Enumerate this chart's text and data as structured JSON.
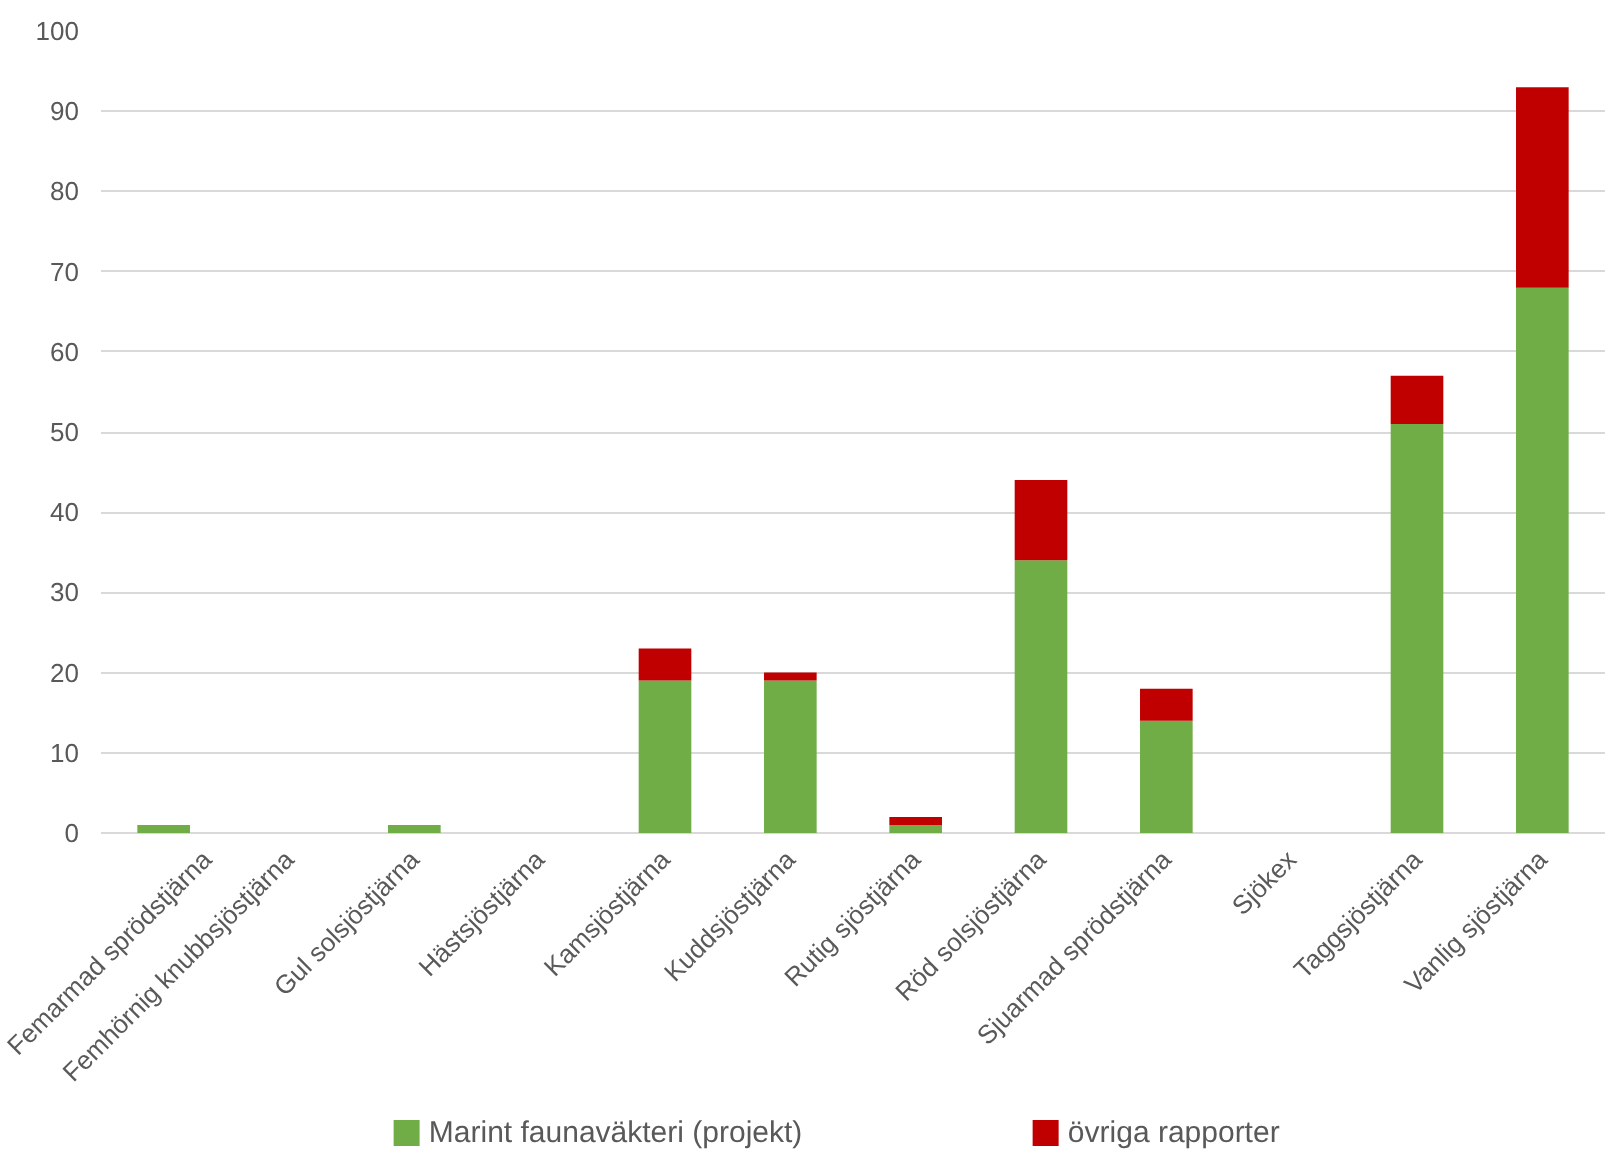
{
  "chart_data": {
    "type": "bar",
    "stacked": true,
    "categories": [
      "Femarmad sprödstjärna",
      "Femhörnig knubbsjöstjärna",
      "Gul solsjöstjärna",
      "Hästsjöstjärna",
      "Kamsjöstjärna",
      "Kuddsjöstjärna",
      "Rutig sjöstjärna",
      "Röd solsjöstjärna",
      "Sjuarmad sprödstjärna",
      "Sjökex",
      "Taggsjöstjärna",
      "Vanlig sjöstjärna"
    ],
    "series": [
      {
        "name": "Marint faunaväkteri (projekt)",
        "color": "#70ad47",
        "values": [
          1,
          0,
          1,
          0,
          19,
          19,
          1,
          34,
          14,
          0,
          51,
          68
        ]
      },
      {
        "name": "övriga rapporter",
        "color": "#c00000",
        "values": [
          0,
          0,
          0,
          0,
          4,
          1,
          1,
          10,
          4,
          0,
          6,
          25
        ]
      }
    ],
    "ylim": [
      0,
      100
    ],
    "yticks": [
      0,
      10,
      20,
      30,
      40,
      50,
      60,
      70,
      80,
      90,
      100
    ],
    "grid": "y",
    "legend": "bottom"
  }
}
